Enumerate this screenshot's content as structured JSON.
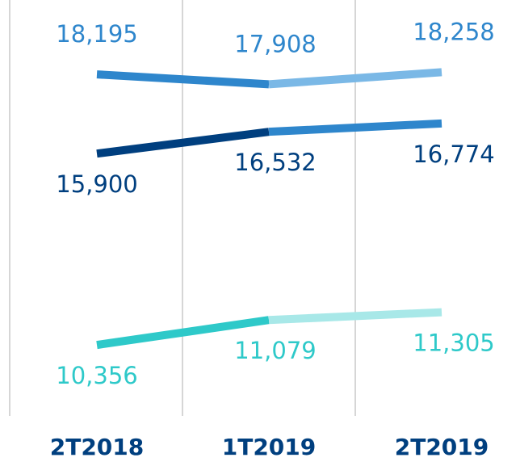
{
  "chart_data": {
    "type": "line",
    "categories": [
      "2T2018",
      "1T2019",
      "2T2019"
    ],
    "ylim": [
      8300,
      20350
    ],
    "series": [
      {
        "colors": [
          "#2e86cc",
          "#7ab8e6"
        ],
        "values": [
          18195,
          17908,
          18258
        ],
        "value_labels": [
          "18,195",
          "17,908",
          "18,258"
        ],
        "label_position": "above"
      },
      {
        "colors": [
          "#003f7f",
          "#2e86cc"
        ],
        "values": [
          15900,
          16532,
          16774
        ],
        "value_labels": [
          "15,900",
          "16,532",
          "16,774"
        ],
        "label_position": "below"
      },
      {
        "colors": [
          "#2ec9c9",
          "#a8e8e8"
        ],
        "values": [
          10356,
          11079,
          11305
        ],
        "value_labels": [
          "10,356",
          "11,079",
          "11,305"
        ],
        "label_position": "below"
      }
    ]
  }
}
